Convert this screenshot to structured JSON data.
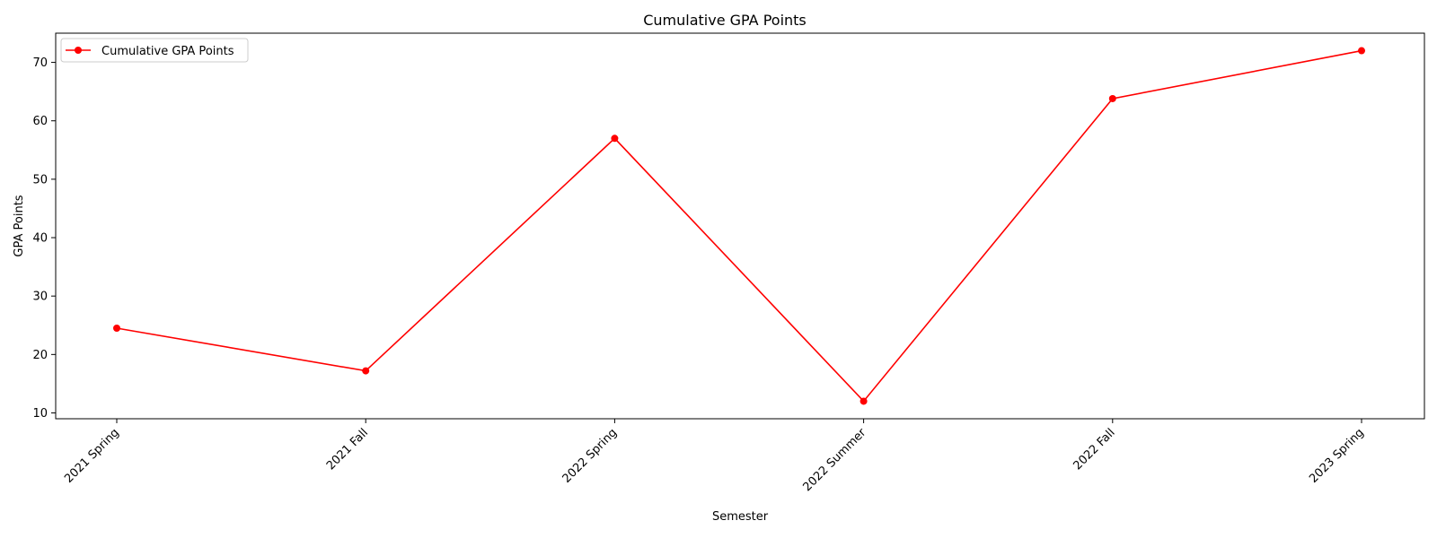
{
  "chart_data": {
    "type": "line",
    "title": "Cumulative GPA Points",
    "xlabel": "Semester",
    "ylabel": "GPA Points",
    "categories": [
      "2021 Spring",
      "2021 Fall",
      "2022 Spring",
      "2022 Summer",
      "2022 Fall",
      "2023 Spring"
    ],
    "series": [
      {
        "name": "Cumulative GPA Points",
        "values": [
          24.5,
          17.2,
          57.0,
          12.0,
          63.8,
          72.0
        ],
        "color": "#ff0000",
        "marker": "circle"
      }
    ],
    "ylim": [
      9.0,
      75.0
    ],
    "yticks": [
      10,
      20,
      30,
      40,
      50,
      60,
      70
    ],
    "grid": false,
    "legend_position": "top-left"
  }
}
